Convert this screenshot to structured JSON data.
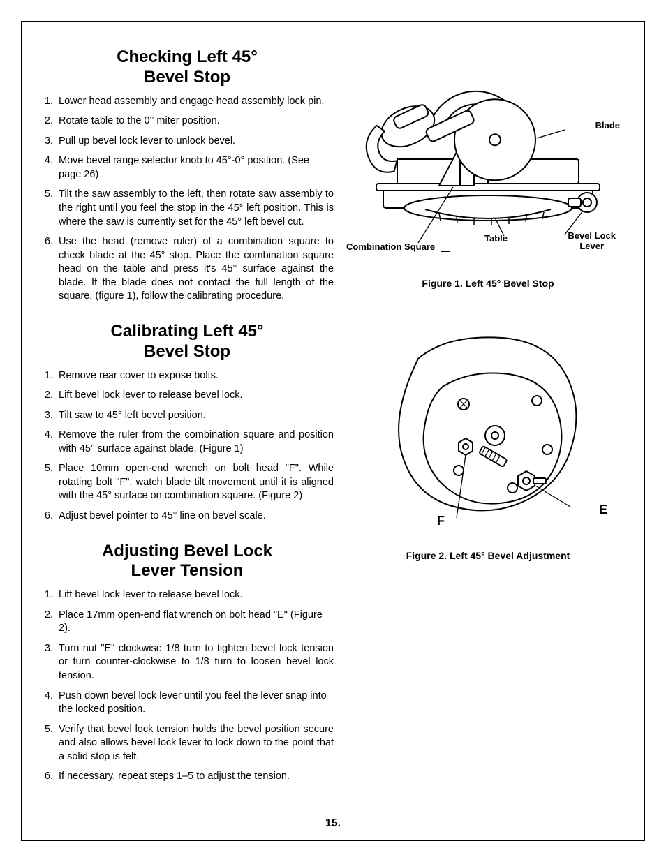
{
  "page_number": "15.",
  "sections": [
    {
      "title": "Checking Left 45°\nBevel Stop",
      "steps": [
        "Lower head assembly and engage head assembly lock pin.",
        "Rotate table to the 0° miter position.",
        "Pull up bevel lock lever to unlock bevel.",
        "Move bevel range selector knob to 45°-0° position. (See page 26)",
        "Tilt the saw assembly to the left, then rotate saw assembly to the right until you feel the stop in the 45° left position. This is where the saw is currently set for the 45° left bevel cut.",
        "Use the head (remove ruler) of a combination square to check blade at the 45° stop. Place the combination square head on the table and press it's 45° surface against the blade. If the blade does not contact the full length of the square, (figure 1), follow the calibrating procedure."
      ]
    },
    {
      "title": "Calibrating Left 45°\nBevel Stop",
      "steps": [
        "Remove rear cover to expose bolts.",
        "Lift bevel lock lever to release bevel lock.",
        "Tilt saw to 45° left bevel position.",
        "Remove the ruler from the combination square and position with 45° surface against blade. (Figure 1)",
        "Place 10mm open-end wrench on bolt head \"F\". While rotating bolt \"F\", watch blade tilt movement until it is aligned with the 45° surface on combination square. (Figure 2)",
        "Adjust bevel pointer to 45° line on bevel scale."
      ]
    },
    {
      "title": "Adjusting Bevel Lock\nLever Tension",
      "steps": [
        "Lift bevel lock lever to release bevel lock.",
        "Place 17mm open-end flat wrench on bolt head \"E\" (Figure 2).",
        "Turn nut \"E\" clockwise 1/8 turn to tighten bevel lock tension or turn counter-clockwise to 1/8 turn to loosen bevel lock tension.",
        "Push down bevel lock lever until you feel the lever snap into the locked position.",
        "Verify that bevel lock tension holds the bevel position secure and also allows bevel lock lever to lock down to the point that a solid stop is felt.",
        "If necessary, repeat steps 1–5 to adjust the tension."
      ]
    }
  ],
  "figures": [
    {
      "caption": "Figure 1. Left 45° Bevel Stop",
      "labels": {
        "blade": "Blade",
        "table": "Table",
        "bevel_lock_lever": "Bevel Lock\nLever",
        "combination_square": "Combination Square"
      }
    },
    {
      "caption": "Figure 2. Left 45° Bevel Adjustment",
      "labels": {
        "E": "E",
        "F": "F"
      }
    }
  ]
}
